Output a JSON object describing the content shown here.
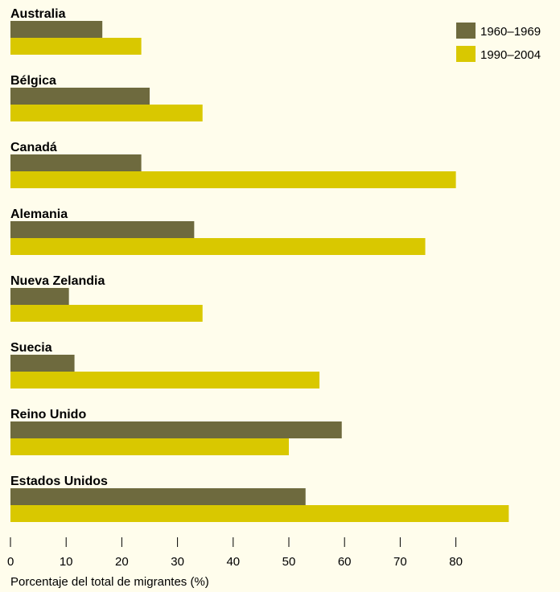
{
  "chart_data": {
    "type": "bar",
    "orientation": "horizontal",
    "categories": [
      "Australia",
      "Bélgica",
      "Canadá",
      "Alemania",
      "Nueva Zelandia",
      "Suecia",
      "Reino Unido",
      "Estados Unidos"
    ],
    "series": [
      {
        "name": "1960–1969",
        "color": "#6e6a3e",
        "values": [
          16.5,
          25,
          23.5,
          33,
          10.5,
          11.5,
          59.5,
          53
        ]
      },
      {
        "name": "1990–2004",
        "color": "#d9c800",
        "values": [
          23.5,
          34.5,
          80,
          74.5,
          34.5,
          55.5,
          50,
          89.5
        ]
      }
    ],
    "xlabel": "Porcentaje del total de migrantes (%)",
    "xticks": [
      0,
      10,
      20,
      30,
      40,
      50,
      60,
      70,
      80
    ],
    "xlim": [
      0,
      90
    ],
    "legend_position": "top-right",
    "grid": false
  }
}
